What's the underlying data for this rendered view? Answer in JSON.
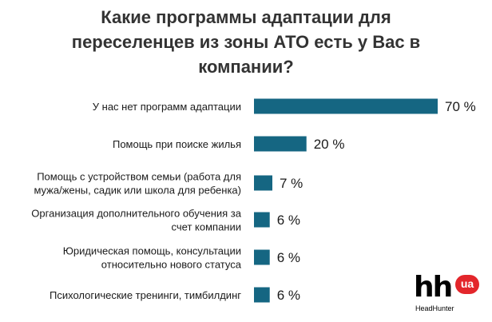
{
  "title_lines": [
    "Какие программы адаптации для",
    "переселенцев из зоны АТО есть у Вас в",
    "компании?"
  ],
  "colors": {
    "bar": "#156682",
    "logo_badge": "#e3262b"
  },
  "logo": {
    "text": "hh",
    "badge": "ua",
    "subtitle": "HeadHunter"
  },
  "chart_data": {
    "type": "bar",
    "orientation": "horizontal",
    "categories": [
      [
        "У нас нет программ адаптации"
      ],
      [
        "Помощь при поиске жилья"
      ],
      [
        "Помощь с устройством семьи (работа для",
        "мужа/жены, садик или школа для ребенка)"
      ],
      [
        "Организация дополнительного обучения за",
        "счет компании"
      ],
      [
        "Юридическая помощь, консультации",
        "относительно нового статуса"
      ],
      [
        "Психологические тренинги, тимбилдинг"
      ]
    ],
    "values": [
      70,
      20,
      7,
      6,
      6,
      6
    ],
    "value_labels": [
      "70 %",
      "20 %",
      "7 %",
      "6 %",
      "6 %",
      "6 %"
    ],
    "unit": "%",
    "xlim": [
      0,
      70
    ],
    "grid": false,
    "legend": "none"
  }
}
